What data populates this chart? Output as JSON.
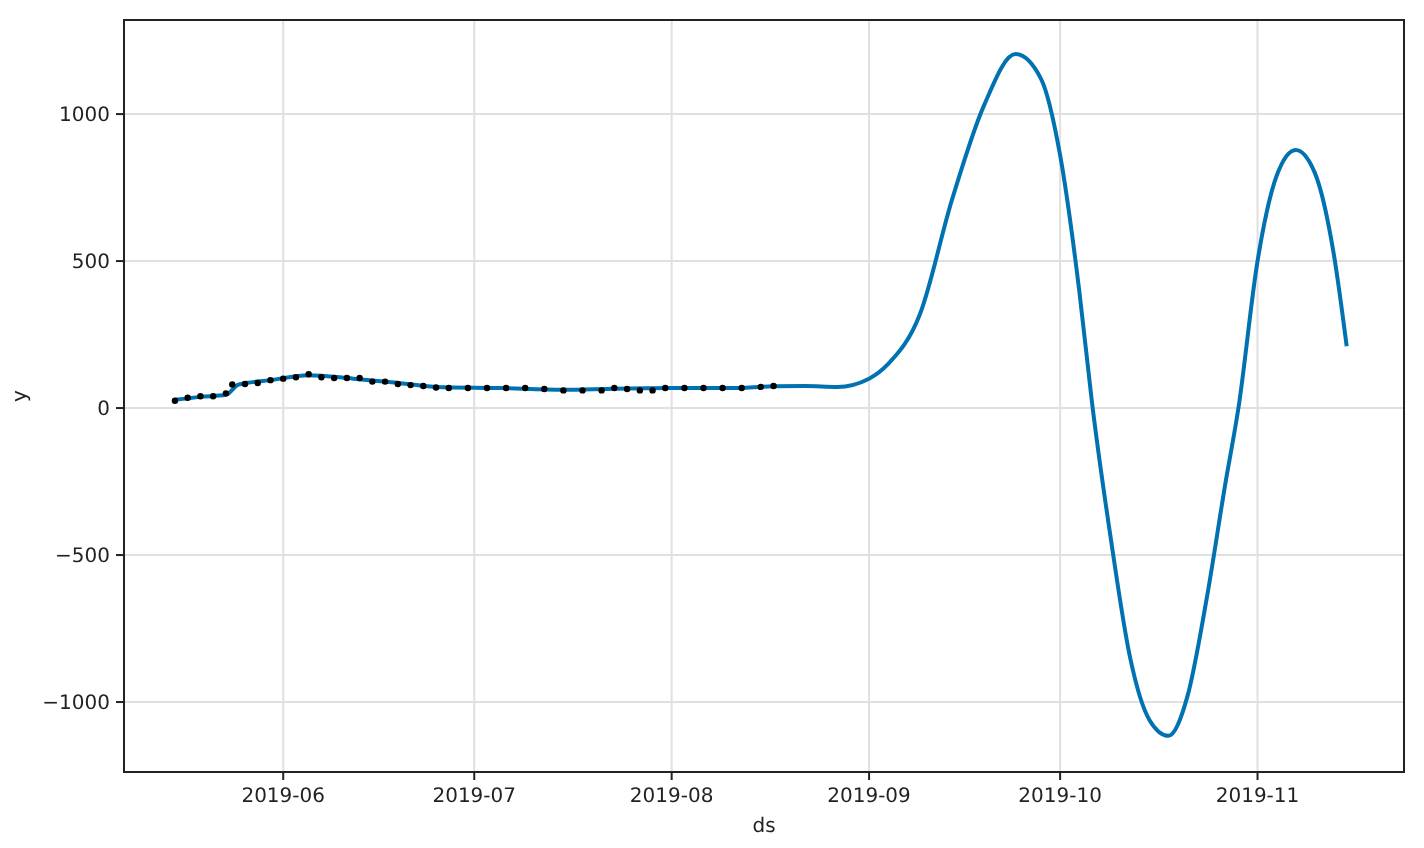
{
  "chart_data": {
    "type": "line",
    "xlabel": "ds",
    "ylabel": "y",
    "grid": true,
    "xlim": [
      "2019-05-07",
      "2019-11-24"
    ],
    "ylim": [
      -1238,
      1320
    ],
    "xticks": [
      {
        "value": "2019-06-01",
        "label": "2019-06"
      },
      {
        "value": "2019-07-01",
        "label": "2019-07"
      },
      {
        "value": "2019-08-01",
        "label": "2019-08"
      },
      {
        "value": "2019-09-01",
        "label": "2019-09"
      },
      {
        "value": "2019-10-01",
        "label": "2019-10"
      },
      {
        "value": "2019-11-01",
        "label": "2019-11"
      }
    ],
    "yticks": [
      -1000,
      -500,
      0,
      500,
      1000
    ],
    "series": [
      {
        "type": "line",
        "color": "#0072b2",
        "line_style": "solid",
        "x": [
          "2019-05-15",
          "2019-05-19",
          "2019-05-23",
          "2019-05-25",
          "2019-05-30",
          "2019-06-05",
          "2019-06-12",
          "2019-06-18",
          "2019-06-25",
          "2019-07-05",
          "2019-07-15",
          "2019-07-23",
          "2019-08-01",
          "2019-08-10",
          "2019-08-17",
          "2019-08-22",
          "2019-08-27",
          "2019-09-01",
          "2019-09-04",
          "2019-09-09",
          "2019-09-14",
          "2019-09-19",
          "2019-09-24",
          "2019-09-28",
          "2019-10-01",
          "2019-10-04",
          "2019-10-06",
          "2019-10-09",
          "2019-10-12",
          "2019-10-15",
          "2019-10-18",
          "2019-10-21",
          "2019-10-24",
          "2019-10-27",
          "2019-10-29",
          "2019-11-01",
          "2019-11-04",
          "2019-11-07",
          "2019-11-10",
          "2019-11-13",
          "2019-11-15"
        ],
        "values": [
          28,
          38,
          45,
          80,
          95,
          112,
          100,
          88,
          72,
          68,
          62,
          66,
          68,
          68,
          74,
          75,
          72,
          100,
          150,
          320,
          707,
          1027,
          1204,
          1120,
          860,
          400,
          20,
          -450,
          -850,
          -1060,
          -1115,
          -980,
          -650,
          -250,
          0,
          500,
          790,
          878,
          800,
          520,
          210
        ]
      },
      {
        "type": "scatter",
        "color": "#000000",
        "marker": "circle",
        "x": [
          "2019-05-15",
          "2019-05-17",
          "2019-05-19",
          "2019-05-21",
          "2019-05-23",
          "2019-05-24",
          "2019-05-26",
          "2019-05-28",
          "2019-05-30",
          "2019-06-01",
          "2019-06-03",
          "2019-06-05",
          "2019-06-07",
          "2019-06-09",
          "2019-06-11",
          "2019-06-13",
          "2019-06-15",
          "2019-06-17",
          "2019-06-19",
          "2019-06-21",
          "2019-06-23",
          "2019-06-25",
          "2019-06-27",
          "2019-06-30",
          "2019-07-03",
          "2019-07-06",
          "2019-07-09",
          "2019-07-12",
          "2019-07-15",
          "2019-07-18",
          "2019-07-21",
          "2019-07-23",
          "2019-07-25",
          "2019-07-27",
          "2019-07-29",
          "2019-07-31",
          "2019-08-03",
          "2019-08-06",
          "2019-08-09",
          "2019-08-12",
          "2019-08-15",
          "2019-08-17"
        ],
        "values": [
          25,
          35,
          40,
          40,
          50,
          80,
          82,
          85,
          95,
          100,
          105,
          115,
          105,
          102,
          102,
          102,
          90,
          90,
          82,
          78,
          75,
          70,
          68,
          68,
          68,
          68,
          68,
          65,
          60,
          60,
          60,
          68,
          65,
          60,
          60,
          68,
          68,
          68,
          68,
          68,
          72,
          75
        ]
      }
    ]
  }
}
